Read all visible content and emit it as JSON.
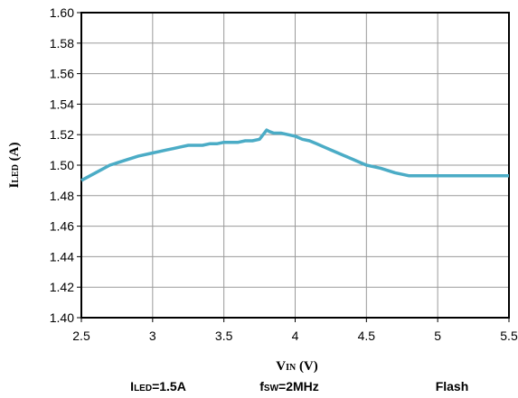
{
  "chart_data": {
    "type": "line",
    "xlabel": {
      "main": "V",
      "sub": "IN",
      "unit": " (V)"
    },
    "ylabel": {
      "main": "I",
      "sub": "LED",
      "unit": " (A)"
    },
    "xlim": [
      2.5,
      5.5
    ],
    "ylim": [
      1.4,
      1.6
    ],
    "xticks": [
      "2.5",
      "3",
      "3.5",
      "4",
      "4.5",
      "5",
      "5.5"
    ],
    "yticks": [
      "1.40",
      "1.42",
      "1.44",
      "1.46",
      "1.48",
      "1.50",
      "1.52",
      "1.54",
      "1.56",
      "1.58",
      "1.60"
    ],
    "grid": true,
    "color": "#4bacc6",
    "series": [
      {
        "x": [
          2.5,
          2.6,
          2.7,
          2.8,
          2.9,
          3.0,
          3.05,
          3.1,
          3.15,
          3.2,
          3.25,
          3.3,
          3.35,
          3.4,
          3.45,
          3.5,
          3.55,
          3.6,
          3.65,
          3.7,
          3.75,
          3.8,
          3.82,
          3.85,
          3.9,
          3.95,
          4.0,
          4.05,
          4.1,
          4.15,
          4.2,
          4.25,
          4.3,
          4.35,
          4.4,
          4.45,
          4.5,
          4.55,
          4.6,
          4.7,
          4.8,
          4.9,
          5.0,
          5.25,
          5.5
        ],
        "y": [
          1.49,
          1.495,
          1.5,
          1.503,
          1.506,
          1.508,
          1.509,
          1.51,
          1.511,
          1.512,
          1.513,
          1.513,
          1.513,
          1.514,
          1.514,
          1.515,
          1.515,
          1.515,
          1.516,
          1.516,
          1.517,
          1.523,
          1.522,
          1.521,
          1.521,
          1.52,
          1.519,
          1.517,
          1.516,
          1.514,
          1.512,
          1.51,
          1.508,
          1.506,
          1.504,
          1.502,
          1.5,
          1.499,
          1.498,
          1.495,
          1.493,
          1.493,
          1.493,
          1.493,
          1.493
        ]
      }
    ]
  },
  "notes": [
    {
      "main": "I",
      "sub": "LED",
      "rest": "=1.5A"
    },
    {
      "main": "f",
      "sub": "SW",
      "rest": "=2MHz"
    },
    {
      "main": "Flash",
      "sub": "",
      "rest": ""
    }
  ]
}
